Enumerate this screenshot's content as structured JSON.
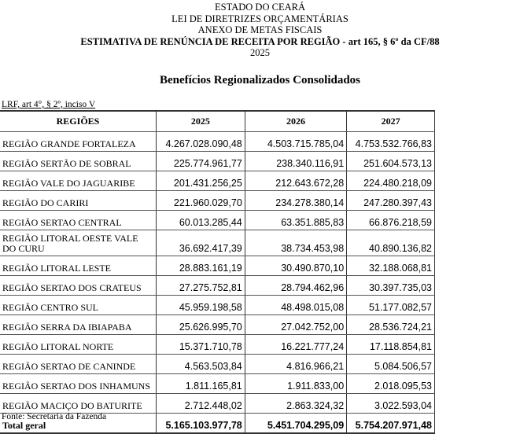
{
  "header": {
    "line1": "ESTADO DO CEARÁ",
    "line2": "LEI DE DIRETRIZES ORÇAMENTÁRIAS",
    "line3": "ANEXO DE METAS FISCAIS",
    "line4": "ESTIMATIVA DE RENÚNCIA DE RECEITA POR REGIÃO - art 165, § 6º da CF/88",
    "year": "2025"
  },
  "subtitle": "Benefícios Regionalizados Consolidados",
  "legal_ref": "LRF, art 4°, § 2º, inciso V",
  "table": {
    "columns": [
      "REGIÕES",
      "2025",
      "2026",
      "2027"
    ],
    "rows": [
      [
        "REGIÃO GRANDE FORTALEZA",
        "4.267.028.090,48",
        "4.503.715.785,04",
        "4.753.532.766,83"
      ],
      [
        "REGIÃO SERTÃO DE SOBRAL",
        "225.774.961,77",
        "238.340.116,91",
        "251.604.573,13"
      ],
      [
        "REGIÃO VALE DO JAGUARIBE",
        "201.431.256,25",
        "212.643.672,28",
        "224.480.218,09"
      ],
      [
        "REGIÃO DO CARIRI",
        "221.960.029,70",
        "234.278.380,14",
        "247.280.397,43"
      ],
      [
        "REGIÃO SERTAO CENTRAL",
        "60.013.285,44",
        "63.351.885,83",
        "66.876.218,59"
      ],
      [
        "REGIÃO LITORAL OESTE VALE DO CURU",
        "36.692.417,39",
        "38.734.453,98",
        "40.890.136,82"
      ],
      [
        "REGIÃO LITORAL LESTE",
        "28.883.161,19",
        "30.490.870,10",
        "32.188.068,81"
      ],
      [
        "REGIÃO SERTAO DOS CRATEUS",
        "27.275.752,81",
        "28.794.462,96",
        "30.397.735,03"
      ],
      [
        "REGIÃO CENTRO SUL",
        "45.959.198,58",
        "48.498.015,08",
        "51.177.082,57"
      ],
      [
        "REGIÃO SERRA DA IBIAPABA",
        "25.626.995,70",
        "27.042.752,00",
        "28.536.724,21"
      ],
      [
        "REGIÃO LITORAL NORTE",
        "15.371.710,78",
        "16.221.777,24",
        "17.118.854,81"
      ],
      [
        "REGIÃO SERTAO DE CANINDE",
        "4.563.503,84",
        "4.816.966,21",
        "5.084.506,57"
      ],
      [
        "REGIÃO SERTAO DOS INHAMUNS",
        "1.811.165,81",
        "1.911.833,00",
        "2.018.095,53"
      ],
      [
        "REGIÃO MACIÇO DO BATURITE",
        "2.712.448,02",
        "2.863.324,32",
        "3.022.593,04"
      ]
    ],
    "total": [
      "Total geral",
      "5.165.103.977,78",
      "5.451.704.295,09",
      "5.754.207.971,48"
    ]
  },
  "source": "Fonte: Secretaria da Fazenda"
}
